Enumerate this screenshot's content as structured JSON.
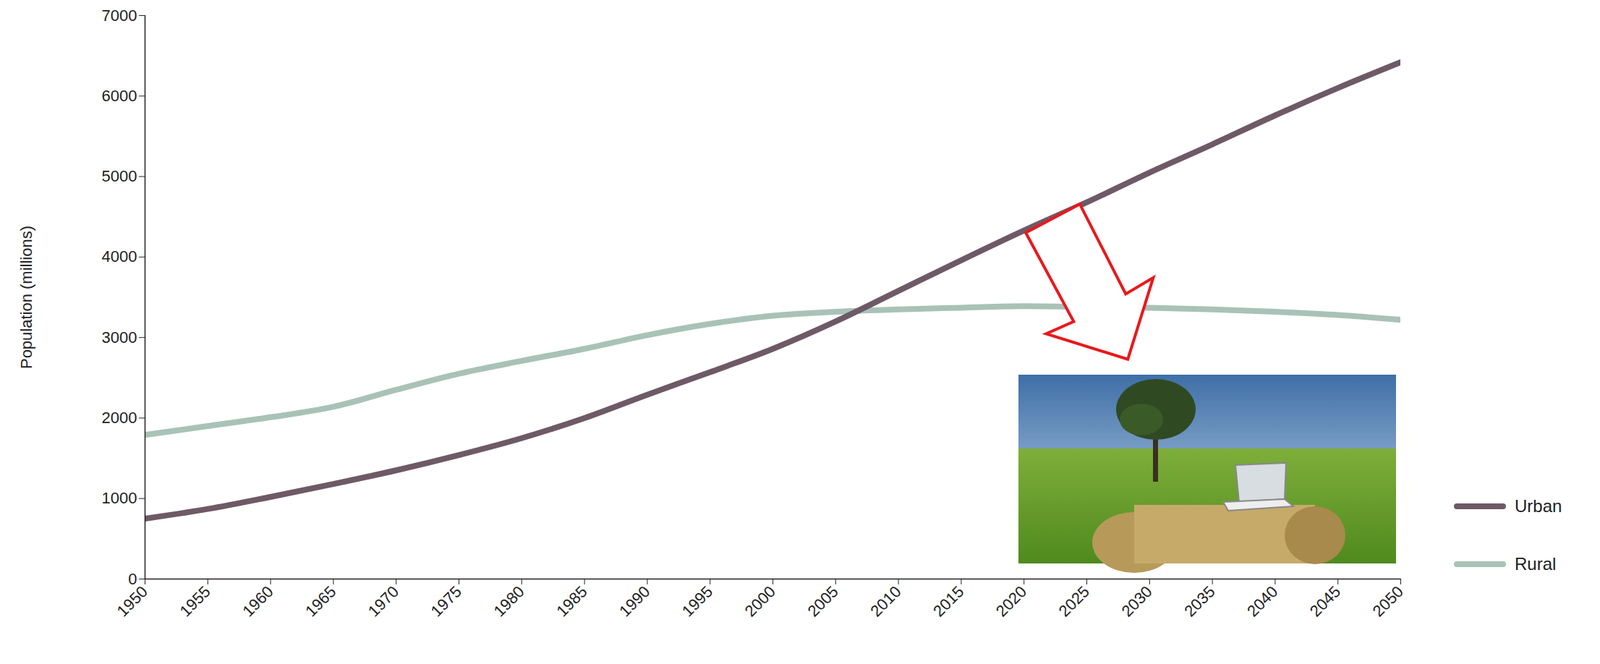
{
  "chart_data": {
    "type": "line",
    "y_label": "Population (millions)",
    "x": [
      1950,
      1955,
      1960,
      1965,
      1970,
      1975,
      1980,
      1985,
      1990,
      1995,
      2000,
      2005,
      2010,
      2015,
      2020,
      2025,
      2030,
      2035,
      2040,
      2045,
      2050
    ],
    "series": [
      {
        "name": "Urban",
        "color": "#6e5a66",
        "values": [
          750,
          870,
          1020,
          1180,
          1350,
          1540,
          1750,
          2000,
          2290,
          2570,
          2860,
          3200,
          3580,
          3960,
          4330,
          4680,
          5050,
          5400,
          5760,
          6100,
          6420
        ]
      },
      {
        "name": "Rural",
        "color": "#a9c2b8",
        "values": [
          1790,
          1900,
          2010,
          2140,
          2350,
          2550,
          2710,
          2860,
          3030,
          3170,
          3270,
          3320,
          3350,
          3370,
          3390,
          3380,
          3370,
          3350,
          3320,
          3280,
          3220
        ]
      }
    ],
    "xlim": [
      1950,
      2050
    ],
    "xticks": [
      1950,
      1955,
      1960,
      1965,
      1970,
      1975,
      1980,
      1985,
      1990,
      1995,
      2000,
      2005,
      2010,
      2015,
      2020,
      2025,
      2030,
      2035,
      2040,
      2045,
      2050
    ],
    "ylim": [
      0,
      7000
    ],
    "yticks": [
      0,
      1000,
      2000,
      3000,
      4000,
      5000,
      6000,
      7000
    ],
    "grid": false,
    "legend": "right"
  }
}
